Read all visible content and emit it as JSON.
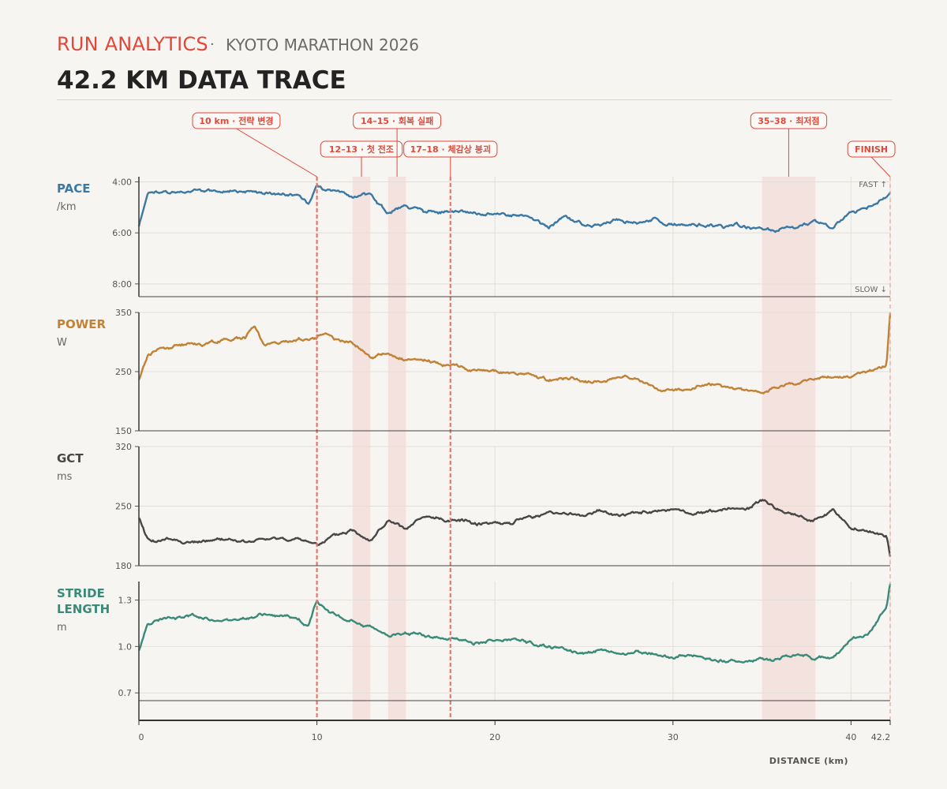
{
  "header": {
    "brand": "RUN ANALYTICS",
    "separator": "·",
    "subtitle": "KYOTO MARATHON 2026",
    "title": "42.2 KM DATA TRACE"
  },
  "chart_data": {
    "type": "line",
    "xlabel": "DISTANCE (km)",
    "xlim": [
      0,
      42.2
    ],
    "x_ticks": [
      "0",
      "10",
      "20",
      "30",
      "40",
      "42.2"
    ],
    "x_tick_values": [
      0,
      10,
      20,
      30,
      40,
      42.2
    ],
    "panels": [
      {
        "key": "pace",
        "label": "PACE",
        "unit": "/km",
        "color": "#3b78a4",
        "inverted": true,
        "ylim": [
          8.5,
          3.8
        ],
        "y_tick_values": [
          4,
          6,
          8
        ],
        "y_ticks": [
          "4:00",
          "6:00",
          "8:00"
        ],
        "top_note": "FAST ↑",
        "bottom_note": "SLOW ↓",
        "x": [
          0,
          0.5,
          1,
          2,
          3,
          4,
          5,
          6,
          7,
          8,
          9,
          9.5,
          10,
          10.5,
          11,
          12,
          13,
          14,
          15,
          16,
          17,
          18,
          19,
          20,
          21,
          22,
          23,
          24,
          25,
          26,
          27,
          28,
          29,
          30,
          31,
          32,
          33,
          34,
          35,
          36,
          37,
          38,
          39,
          40,
          41,
          42,
          42.2
        ],
        "values": [
          5.7,
          4.5,
          4.45,
          4.4,
          4.35,
          4.4,
          4.3,
          4.4,
          4.45,
          4.5,
          4.6,
          4.9,
          4.1,
          4.5,
          4.4,
          4.6,
          4.5,
          5.2,
          4.85,
          5.3,
          5.15,
          5.2,
          5.3,
          5.25,
          5.3,
          5.4,
          5.8,
          5.3,
          5.6,
          5.55,
          5.45,
          5.6,
          5.55,
          5.8,
          5.65,
          5.7,
          5.75,
          5.75,
          5.9,
          5.85,
          5.85,
          5.6,
          5.9,
          5.2,
          5.0,
          4.6,
          4.4
        ]
      },
      {
        "key": "power",
        "label": "POWER",
        "unit": "W",
        "color": "#bf8236",
        "inverted": false,
        "ylim": [
          150,
          350
        ],
        "y_tick_values": [
          150,
          250,
          350
        ],
        "y_ticks": [
          "150",
          "250",
          "350"
        ],
        "x": [
          0,
          0.5,
          1,
          2,
          3,
          4,
          5,
          6,
          6.5,
          7,
          8,
          9,
          10,
          10.5,
          11,
          12,
          13,
          14,
          15,
          16,
          17,
          18,
          19,
          20,
          21,
          22,
          23,
          24,
          25,
          26,
          27,
          28,
          29,
          30,
          31,
          32,
          33,
          34,
          35,
          36,
          37,
          38,
          39,
          40,
          41,
          42,
          42.2
        ],
        "values": [
          235,
          280,
          290,
          295,
          300,
          300,
          305,
          310,
          330,
          300,
          300,
          305,
          310,
          320,
          305,
          300,
          275,
          280,
          265,
          265,
          262,
          260,
          252,
          250,
          248,
          245,
          235,
          240,
          235,
          232,
          245,
          240,
          222,
          220,
          225,
          230,
          225,
          218,
          212,
          225,
          230,
          238,
          240,
          240,
          248,
          260,
          350
        ]
      },
      {
        "key": "gct",
        "label": "GCT",
        "unit": "ms",
        "color": "#474747",
        "inverted": false,
        "ylim": [
          180,
          320
        ],
        "y_tick_values": [
          180,
          250,
          320
        ],
        "y_ticks": [
          "180",
          "250",
          "320"
        ],
        "x": [
          0,
          0.5,
          1,
          2,
          3,
          4,
          5,
          6,
          7,
          8,
          9,
          10,
          11,
          12,
          13,
          14,
          15,
          16,
          17,
          18,
          19,
          20,
          21,
          22,
          23,
          24,
          25,
          26,
          27,
          28,
          29,
          30,
          31,
          32,
          33,
          34,
          35,
          36,
          37,
          38,
          39,
          40,
          41,
          42,
          42.2
        ],
        "values": [
          235,
          210,
          208,
          210,
          206,
          208,
          210,
          207,
          210,
          212,
          210,
          205,
          212,
          220,
          210,
          232,
          222,
          235,
          232,
          232,
          230,
          232,
          230,
          238,
          240,
          243,
          238,
          245,
          240,
          243,
          242,
          246,
          240,
          242,
          248,
          245,
          258,
          245,
          238,
          235,
          245,
          222,
          220,
          215,
          190
        ]
      },
      {
        "key": "stride",
        "label": "STRIDE",
        "label2": "LENGTH",
        "unit": "m",
        "color": "#3a8a7a",
        "inverted": false,
        "ylim": [
          0.65,
          1.42
        ],
        "y_tick_values": [
          0.7,
          1.0,
          1.3
        ],
        "y_ticks": [
          "0.7",
          "1.0",
          "1.3"
        ],
        "x": [
          0,
          0.5,
          1,
          2,
          3,
          4,
          5,
          6,
          7,
          8,
          9,
          9.5,
          10,
          11,
          12,
          13,
          14,
          15,
          16,
          17,
          18,
          19,
          20,
          21,
          22,
          23,
          24,
          25,
          26,
          27,
          28,
          29,
          30,
          31,
          32,
          33,
          34,
          35,
          36,
          37,
          38,
          39,
          40,
          41,
          42,
          42.2
        ],
        "values": [
          0.97,
          1.15,
          1.17,
          1.18,
          1.2,
          1.18,
          1.17,
          1.2,
          1.22,
          1.2,
          1.17,
          1.12,
          1.3,
          1.2,
          1.15,
          1.12,
          1.07,
          1.1,
          1.08,
          1.06,
          1.05,
          1.03,
          1.05,
          1.03,
          1.02,
          1.0,
          0.98,
          0.96,
          0.98,
          0.95,
          0.96,
          0.94,
          0.93,
          0.95,
          0.92,
          0.91,
          0.91,
          0.92,
          0.93,
          0.95,
          0.92,
          0.95,
          1.05,
          1.08,
          1.25,
          1.4
        ]
      }
    ],
    "events": [
      {
        "label": "10 km · 전략 변경",
        "x": 10,
        "type": "line"
      },
      {
        "label": "12–13 · 첫 전조",
        "x0": 12,
        "x1": 13,
        "type": "band"
      },
      {
        "label": "14–15 · 회복 실패",
        "x0": 14,
        "x1": 15,
        "type": "band"
      },
      {
        "label": "17–18 · 체감상 붕괴",
        "x": 17.5,
        "type": "line"
      },
      {
        "label": "35–38 · 최저점",
        "x0": 35,
        "x1": 38,
        "type": "band"
      },
      {
        "label": "FINISH",
        "x": 42.2,
        "type": "finish"
      }
    ]
  }
}
